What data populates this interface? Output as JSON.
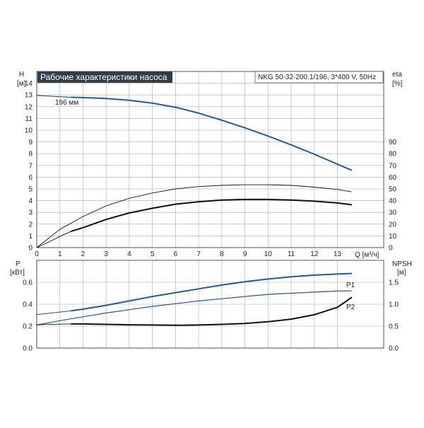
{
  "title": "Рабочие характеристики насоса",
  "model": "NKG 50-32-200.1/196, 3*400 V, 50Hz",
  "colors": {
    "blue": "#1f5b96",
    "black": "#111111",
    "thin": "#1a3a5a",
    "title_bg": "#333d47"
  },
  "chart_data": [
    {
      "type": "line",
      "name": "performance",
      "x_unit_label": "Q [м³/ч]",
      "left_axis": {
        "name": "H",
        "unit": "[м]",
        "ylim": [
          0,
          15
        ],
        "ticks": [
          0,
          1,
          2,
          3,
          4,
          5,
          6,
          7,
          8,
          9,
          10,
          11,
          12,
          13,
          14
        ]
      },
      "right_axis": {
        "name": "eta",
        "unit": "[%]",
        "ylim": [
          0,
          150
        ],
        "ticks": [
          0,
          10,
          20,
          30,
          40,
          50,
          60,
          70,
          80,
          90
        ]
      },
      "xlim": [
        0,
        15
      ],
      "x_ticks": [
        0,
        1,
        2,
        3,
        4,
        5,
        6,
        7,
        8,
        9,
        10,
        11,
        12,
        13
      ],
      "grid": true,
      "annotation": "196 мм",
      "series": [
        {
          "role": "head_full",
          "axis": "left",
          "x": [
            0,
            1.5
          ],
          "y": [
            12.95,
            12.8
          ]
        },
        {
          "role": "head",
          "axis": "left",
          "x": [
            1.5,
            2,
            3,
            4,
            5,
            6,
            7,
            8,
            9,
            10,
            11,
            12,
            13,
            13.6
          ],
          "y": [
            12.8,
            12.78,
            12.7,
            12.55,
            12.3,
            11.95,
            11.45,
            10.85,
            10.2,
            9.5,
            8.75,
            7.95,
            7.1,
            6.6
          ]
        },
        {
          "role": "eta_pump_full",
          "axis": "right",
          "x": [
            0,
            1,
            2,
            3,
            4,
            5,
            6,
            7,
            8,
            9,
            10,
            11,
            12,
            13,
            13.6
          ],
          "y": [
            0,
            15.5,
            26.5,
            35.5,
            42,
            46.5,
            50,
            52,
            53,
            53.5,
            53.5,
            53,
            51.5,
            49.5,
            47.5
          ]
        },
        {
          "role": "eta_total",
          "axis": "right",
          "x": [
            1.5,
            2,
            3,
            4,
            5,
            6,
            7,
            8,
            9,
            10,
            11,
            12,
            13,
            13.6
          ],
          "y": [
            14,
            17,
            24,
            29.5,
            33.5,
            37,
            39,
            40.5,
            41,
            41,
            40.5,
            39.5,
            38,
            36.5
          ]
        },
        {
          "role": "eta_start",
          "axis": "right",
          "x": [
            0,
            0.5,
            1,
            1.5
          ],
          "y": [
            0,
            4.5,
            9.5,
            14
          ]
        }
      ]
    },
    {
      "type": "line",
      "name": "power_npsh",
      "left_axis": {
        "name": "P",
        "unit": "[кВт]",
        "ylim": [
          0,
          0.8
        ],
        "ticks": [
          0.0,
          0.2,
          0.4,
          0.6
        ]
      },
      "right_axis": {
        "name": "NPSH",
        "unit": "[м]",
        "ylim": [
          0,
          2.0
        ],
        "ticks": [
          0.0,
          0.5,
          1.0,
          1.5
        ]
      },
      "xlim": [
        0,
        15
      ],
      "grid": true,
      "series": [
        {
          "role": "p1_full",
          "axis": "left",
          "x": [
            0,
            1.5
          ],
          "y": [
            0.305,
            0.34
          ]
        },
        {
          "name": "P1",
          "axis": "left",
          "x": [
            1.5,
            2,
            3,
            4,
            5,
            6,
            7,
            8,
            9,
            10,
            11,
            12,
            13,
            13.6
          ],
          "y": [
            0.34,
            0.355,
            0.39,
            0.43,
            0.47,
            0.505,
            0.54,
            0.575,
            0.605,
            0.63,
            0.65,
            0.665,
            0.675,
            0.68
          ]
        },
        {
          "name": "P2",
          "axis": "left",
          "x": [
            0,
            1,
            2,
            3,
            4,
            5,
            6,
            7,
            8,
            9,
            10,
            11,
            12,
            13,
            13.6
          ],
          "y": [
            0.21,
            0.25,
            0.285,
            0.32,
            0.35,
            0.38,
            0.405,
            0.43,
            0.45,
            0.47,
            0.49,
            0.5,
            0.51,
            0.52,
            0.522
          ]
        },
        {
          "role": "npsh",
          "axis": "right",
          "x": [
            1.5,
            2,
            3,
            4,
            5,
            6,
            7,
            8,
            9,
            10,
            11,
            12,
            13,
            13.3,
            13.6
          ],
          "y": [
            0.55,
            0.55,
            0.54,
            0.53,
            0.525,
            0.52,
            0.525,
            0.54,
            0.56,
            0.6,
            0.66,
            0.76,
            0.93,
            1.04,
            1.15
          ]
        },
        {
          "role": "npsh_start",
          "axis": "right",
          "x": [
            0,
            1,
            1.5
          ],
          "y": [
            0.53,
            0.545,
            0.55
          ]
        }
      ]
    }
  ]
}
